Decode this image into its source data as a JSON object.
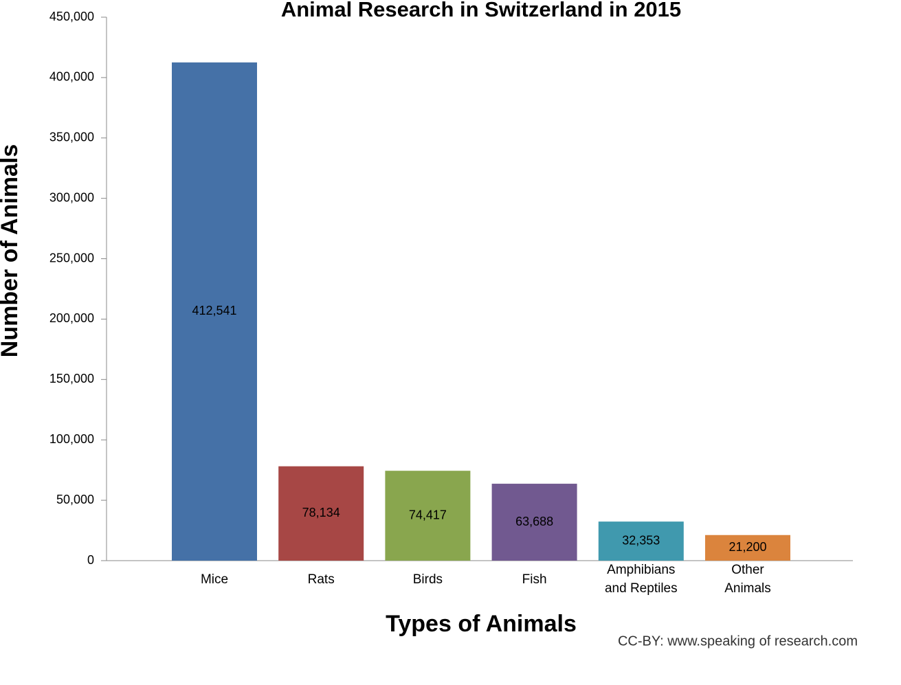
{
  "chart_data": {
    "type": "bar",
    "title": "Animal Research in Switzerland in 2015",
    "x_label": "Types of Animals",
    "y_label": "Number of Animals",
    "source": "CC-BY: www.speaking of research.com",
    "categories": [
      "Mice",
      "Rats",
      "Birds",
      "Fish",
      "Amphibians and Reptiles",
      "Other Animals"
    ],
    "series": [
      {
        "name": "Animals",
        "values": [
          412541,
          78134,
          74417,
          63688,
          32353,
          21200
        ],
        "value_labels": [
          "412,541",
          "78,134",
          "74,417",
          "63,688",
          "32,353",
          "21,200"
        ],
        "colors": [
          "#4571a7",
          "#a74745",
          "#89a64e",
          "#715990",
          "#4099ae",
          "#db843d"
        ]
      }
    ],
    "ylim": [
      0,
      450000
    ],
    "yticks": [
      0,
      {
        "value": 50000,
        "label": "50,000"
      },
      {
        "value": 100000,
        "label": "100,000"
      },
      {
        "value": 150000,
        "label": "150,000"
      },
      {
        "value": 200000,
        "label": "200,000"
      },
      {
        "value": 250000,
        "label": "250,000"
      },
      {
        "value": 300000,
        "label": "300,000"
      },
      {
        "value": 350000,
        "label": "350,000"
      },
      {
        "value": 400000,
        "label": "400,000"
      },
      {
        "value": 450000,
        "label": "450,000"
      }
    ],
    "grid": false
  }
}
